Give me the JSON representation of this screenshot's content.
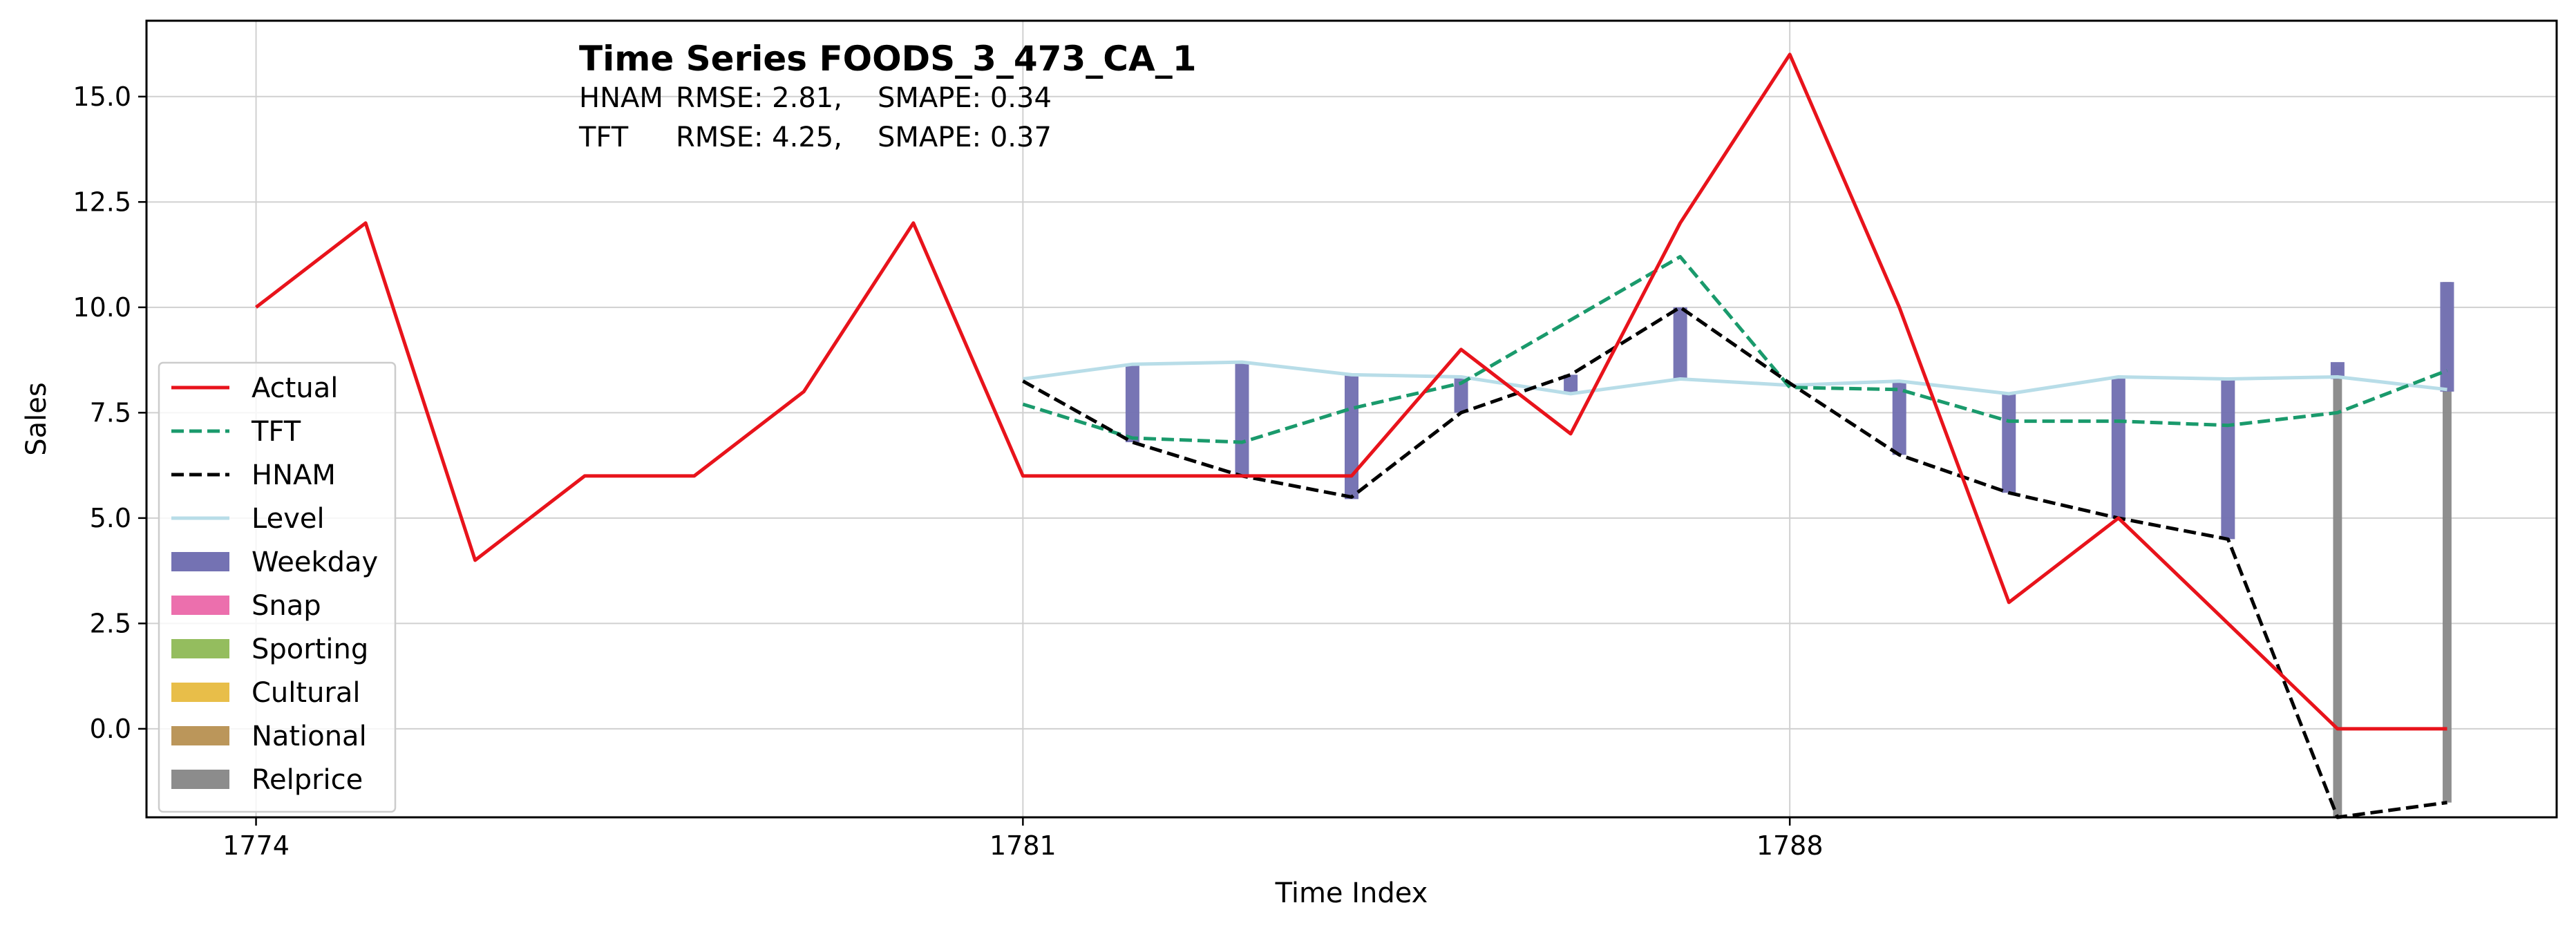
{
  "chart_data": {
    "type": "line",
    "title": "Time Series FOODS_3_473_CA_1",
    "metrics": [
      {
        "model": "HNAM",
        "rmse_label": "RMSE: 2.81,",
        "smape_label": "SMAPE: 0.34"
      },
      {
        "model": "TFT",
        "rmse_label": "RMSE: 4.25,",
        "smape_label": "SMAPE: 0.37"
      }
    ],
    "xlabel": "Time Index",
    "ylabel": "Sales",
    "xlim": [
      1773.0,
      1795.0
    ],
    "ylim": [
      -2.1,
      16.8
    ],
    "xticks": [
      1774,
      1781,
      1788
    ],
    "yticks": [
      0.0,
      2.5,
      5.0,
      7.5,
      10.0,
      12.5,
      15.0
    ],
    "ytick_labels": [
      "0.0",
      "2.5",
      "5.0",
      "7.5",
      "10.0",
      "12.5",
      "15.0"
    ],
    "grid": true,
    "legend_position": "lower left",
    "series": [
      {
        "name": "Actual",
        "style": "solid",
        "color": "#e8131b",
        "x": [
          1774,
          1775,
          1776,
          1777,
          1778,
          1779,
          1780,
          1781,
          1782,
          1783,
          1784,
          1785,
          1786,
          1787,
          1788,
          1789,
          1790,
          1791,
          1792,
          1793,
          1794
        ],
        "y": [
          10,
          12,
          4,
          6,
          6,
          8,
          12,
          6,
          6,
          6,
          6,
          9,
          7,
          12,
          16,
          10,
          3,
          5,
          2.5,
          0,
          0
        ]
      },
      {
        "name": "TFT",
        "style": "dashed",
        "color": "#1a9a6c",
        "x": [
          1781,
          1782,
          1783,
          1784,
          1785,
          1786,
          1787,
          1788,
          1789,
          1790,
          1791,
          1792,
          1793,
          1794
        ],
        "y": [
          7.7,
          6.9,
          6.8,
          7.6,
          8.2,
          9.7,
          11.2,
          8.1,
          8.05,
          7.3,
          7.3,
          7.2,
          7.5,
          8.5
        ]
      },
      {
        "name": "HNAM",
        "style": "dashed",
        "color": "#000000",
        "x": [
          1781,
          1782,
          1783,
          1784,
          1785,
          1786,
          1787,
          1788,
          1789,
          1790,
          1791,
          1792,
          1793,
          1794
        ],
        "y": [
          8.25,
          6.8,
          6.0,
          5.5,
          7.5,
          8.4,
          10.0,
          8.2,
          6.5,
          5.6,
          5.0,
          4.5,
          -2.1,
          -1.75
        ]
      },
      {
        "name": "Level",
        "style": "solid",
        "color": "#b8dde8",
        "x": [
          1781,
          1782,
          1783,
          1784,
          1785,
          1786,
          1787,
          1788,
          1789,
          1790,
          1791,
          1792,
          1793,
          1794
        ],
        "y": [
          8.3,
          8.65,
          8.7,
          8.4,
          8.35,
          7.95,
          8.3,
          8.15,
          8.25,
          7.95,
          8.35,
          8.3,
          8.35,
          8.05
        ]
      }
    ],
    "components": [
      {
        "name": "Weekday",
        "color": "#7472b3"
      },
      {
        "name": "Snap",
        "color": "#ec6fad"
      },
      {
        "name": "Sporting",
        "color": "#94bd5e"
      },
      {
        "name": "Cultural",
        "color": "#e8be49"
      },
      {
        "name": "National",
        "color": "#bb965a"
      },
      {
        "name": "Relprice",
        "color": "#8c8c8c"
      }
    ],
    "component_bars": [
      {
        "component": "Weekday",
        "x": 1782,
        "from": 6.8,
        "to": 8.65
      },
      {
        "component": "Weekday",
        "x": 1783,
        "from": 6.0,
        "to": 8.7
      },
      {
        "component": "Weekday",
        "x": 1784,
        "from": 5.45,
        "to": 8.4
      },
      {
        "component": "Weekday",
        "x": 1785,
        "from": 7.5,
        "to": 8.35
      },
      {
        "component": "Weekday",
        "x": 1786,
        "from": 7.95,
        "to": 8.4
      },
      {
        "component": "Weekday",
        "x": 1787,
        "from": 8.3,
        "to": 10.0
      },
      {
        "component": "Weekday",
        "x": 1789,
        "from": 6.5,
        "to": 8.25
      },
      {
        "component": "Weekday",
        "x": 1790,
        "from": 5.6,
        "to": 7.95
      },
      {
        "component": "Weekday",
        "x": 1791,
        "from": 5.0,
        "to": 8.35
      },
      {
        "component": "Weekday",
        "x": 1792,
        "from": 4.5,
        "to": 8.3
      },
      {
        "component": "Relprice",
        "x": 1793,
        "from": -2.1,
        "to": 8.6
      },
      {
        "component": "Weekday",
        "x": 1793,
        "from": 8.3,
        "to": 8.7
      },
      {
        "component": "Relprice",
        "x": 1794,
        "from": -1.75,
        "to": 10.6
      },
      {
        "component": "Weekday",
        "x": 1794,
        "from": 8.0,
        "to": 10.6
      }
    ]
  }
}
